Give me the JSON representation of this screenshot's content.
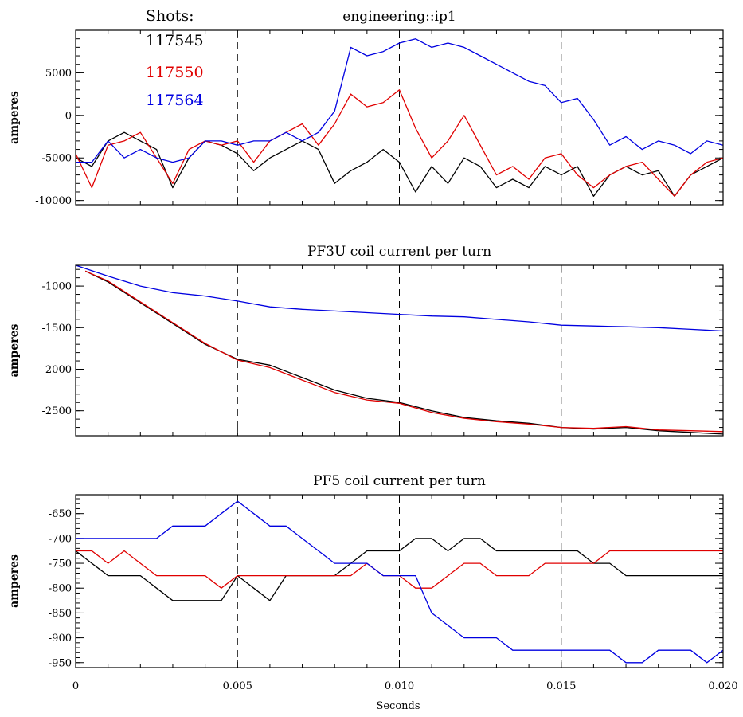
{
  "legend": {
    "title": "Shots:",
    "shots": [
      {
        "label": "117545",
        "color": "#000000"
      },
      {
        "label": "117550",
        "color": "#e00000"
      },
      {
        "label": "117564",
        "color": "#0000e0"
      }
    ]
  },
  "xaxis": {
    "label": "Seconds",
    "ticks": [
      "0",
      "0.005",
      "0.010",
      "0.015",
      "0.020"
    ]
  },
  "chart_data": [
    {
      "type": "line",
      "title": "engineering::ip1",
      "ylabel": "amperes",
      "xlim": [
        0,
        0.02
      ],
      "ylim": [
        -10500,
        10000
      ],
      "yticks": [
        5000,
        0,
        -5000,
        -10000
      ],
      "ytick_labels": [
        "5000",
        "0",
        "-5000",
        "-10000"
      ],
      "vlines": [
        0.005,
        0.01,
        0.015
      ],
      "series": [
        {
          "name": "117545",
          "color": "#000000",
          "x": [
            0,
            0.0005,
            0.001,
            0.0015,
            0.002,
            0.0025,
            0.003,
            0.0035,
            0.004,
            0.0045,
            0.005,
            0.0055,
            0.006,
            0.0065,
            0.007,
            0.0075,
            0.008,
            0.0085,
            0.009,
            0.0095,
            0.01,
            0.0105,
            0.011,
            0.0115,
            0.012,
            0.0125,
            0.013,
            0.0135,
            0.014,
            0.0145,
            0.015,
            0.0155,
            0.016,
            0.0165,
            0.017,
            0.0175,
            0.018,
            0.0185,
            0.019,
            0.0195,
            0.02
          ],
          "y": [
            -5000,
            -6000,
            -3000,
            -2000,
            -3000,
            -4000,
            -8500,
            -5000,
            -3000,
            -3500,
            -4500,
            -6500,
            -5000,
            -4000,
            -3000,
            -4000,
            -8000,
            -6500,
            -5500,
            -4000,
            -5500,
            -9000,
            -6000,
            -8000,
            -5000,
            -6000,
            -8500,
            -7500,
            -8500,
            -6000,
            -7000,
            -6000,
            -9500,
            -7000,
            -6000,
            -7000,
            -6500,
            -9500,
            -7000,
            -6000,
            -5000
          ]
        },
        {
          "name": "117550",
          "color": "#e00000",
          "x": [
            0,
            0.0005,
            0.001,
            0.0015,
            0.002,
            0.0025,
            0.003,
            0.0035,
            0.004,
            0.0045,
            0.005,
            0.0055,
            0.006,
            0.0065,
            0.007,
            0.0075,
            0.008,
            0.0085,
            0.009,
            0.0095,
            0.01,
            0.0105,
            0.011,
            0.0115,
            0.012,
            0.0125,
            0.013,
            0.0135,
            0.014,
            0.0145,
            0.015,
            0.0155,
            0.016,
            0.0165,
            0.017,
            0.0175,
            0.018,
            0.0185,
            0.019,
            0.0195,
            0.02
          ],
          "y": [
            -4500,
            -8500,
            -3500,
            -3000,
            -2000,
            -5000,
            -8000,
            -4000,
            -3000,
            -3500,
            -3000,
            -5500,
            -3000,
            -2000,
            -1000,
            -3500,
            -1000,
            2500,
            1000,
            1500,
            3000,
            -1500,
            -5000,
            -3000,
            0,
            -3500,
            -7000,
            -6000,
            -7500,
            -5000,
            -4500,
            -7000,
            -8500,
            -7000,
            -6000,
            -5500,
            -7500,
            -9500,
            -7000,
            -5500,
            -5000
          ]
        },
        {
          "name": "117564",
          "color": "#0000e0",
          "x": [
            0,
            0.0005,
            0.001,
            0.0015,
            0.002,
            0.0025,
            0.003,
            0.0035,
            0.004,
            0.0045,
            0.005,
            0.0055,
            0.006,
            0.0065,
            0.007,
            0.0075,
            0.008,
            0.0085,
            0.009,
            0.0095,
            0.01,
            0.0105,
            0.011,
            0.0115,
            0.012,
            0.0125,
            0.013,
            0.0135,
            0.014,
            0.0145,
            0.015,
            0.0155,
            0.016,
            0.0165,
            0.017,
            0.0175,
            0.018,
            0.0185,
            0.019,
            0.0195,
            0.02
          ],
          "y": [
            -5500,
            -5500,
            -3000,
            -5000,
            -4000,
            -5000,
            -5500,
            -5000,
            -3000,
            -3000,
            -3500,
            -3000,
            -3000,
            -2000,
            -3000,
            -2000,
            500,
            8000,
            7000,
            7500,
            8500,
            9000,
            8000,
            8500,
            8000,
            7000,
            6000,
            5000,
            4000,
            3500,
            1500,
            2000,
            -500,
            -3500,
            -2500,
            -4000,
            -3000,
            -3500,
            -4500,
            -3000,
            -3500
          ]
        }
      ]
    },
    {
      "type": "line",
      "title": "PF3U coil current per turn",
      "ylabel": "amperes",
      "xlim": [
        0,
        0.02
      ],
      "ylim": [
        -2800,
        -750
      ],
      "yticks": [
        -1000,
        -1500,
        -2000,
        -2500
      ],
      "ytick_labels": [
        "-1000",
        "-1500",
        "-2000",
        "-2500"
      ],
      "vlines": [
        0.005,
        0.01,
        0.015
      ],
      "series": [
        {
          "name": "117545",
          "color": "#000000",
          "x": [
            0.0003,
            0.001,
            0.002,
            0.003,
            0.004,
            0.005,
            0.006,
            0.007,
            0.008,
            0.009,
            0.01,
            0.011,
            0.012,
            0.013,
            0.014,
            0.015,
            0.016,
            0.017,
            0.018,
            0.019,
            0.02
          ],
          "y": [
            -820,
            -950,
            -1200,
            -1450,
            -1700,
            -1880,
            -1950,
            -2100,
            -2250,
            -2350,
            -2400,
            -2500,
            -2580,
            -2620,
            -2650,
            -2700,
            -2720,
            -2700,
            -2740,
            -2760,
            -2780
          ]
        },
        {
          "name": "117550",
          "color": "#e00000",
          "x": [
            0.0003,
            0.001,
            0.002,
            0.003,
            0.004,
            0.005,
            0.006,
            0.007,
            0.008,
            0.009,
            0.01,
            0.011,
            0.012,
            0.013,
            0.014,
            0.015,
            0.016,
            0.017,
            0.018,
            0.019,
            0.02
          ],
          "y": [
            -820,
            -940,
            -1190,
            -1440,
            -1690,
            -1890,
            -1980,
            -2130,
            -2280,
            -2370,
            -2410,
            -2520,
            -2590,
            -2630,
            -2660,
            -2700,
            -2710,
            -2690,
            -2730,
            -2740,
            -2750
          ]
        },
        {
          "name": "117564",
          "color": "#0000e0",
          "x": [
            0,
            0.001,
            0.002,
            0.003,
            0.004,
            0.005,
            0.006,
            0.007,
            0.008,
            0.009,
            0.01,
            0.011,
            0.012,
            0.013,
            0.014,
            0.015,
            0.016,
            0.017,
            0.018,
            0.019,
            0.02
          ],
          "y": [
            -750,
            -880,
            -1000,
            -1080,
            -1120,
            -1180,
            -1250,
            -1280,
            -1300,
            -1320,
            -1340,
            -1360,
            -1370,
            -1400,
            -1430,
            -1470,
            -1480,
            -1490,
            -1500,
            -1520,
            -1540
          ]
        }
      ]
    },
    {
      "type": "line",
      "title": "PF5 coil current per turn",
      "ylabel": "amperes",
      "xlim": [
        0,
        0.02
      ],
      "ylim": [
        -960,
        -612
      ],
      "yticks": [
        -650,
        -700,
        -750,
        -800,
        -850,
        -900,
        -950
      ],
      "ytick_labels": [
        "-650",
        "-700",
        "-750",
        "-800",
        "-850",
        "-900",
        "-950"
      ],
      "vlines": [
        0.005,
        0.01,
        0.015
      ],
      "series": [
        {
          "name": "117545",
          "color": "#000000",
          "x": [
            0,
            0.0005,
            0.001,
            0.0015,
            0.002,
            0.0025,
            0.003,
            0.0035,
            0.004,
            0.0045,
            0.005,
            0.0055,
            0.006,
            0.0065,
            0.007,
            0.0075,
            0.008,
            0.0085,
            0.009,
            0.0095,
            0.01,
            0.0105,
            0.011,
            0.0115,
            0.012,
            0.0125,
            0.013,
            0.0135,
            0.014,
            0.0145,
            0.015,
            0.0155,
            0.016,
            0.0165,
            0.017,
            0.0175,
            0.018,
            0.0185,
            0.019,
            0.0195,
            0.02
          ],
          "y": [
            -725,
            -750,
            -775,
            -775,
            -775,
            -800,
            -825,
            -825,
            -825,
            -825,
            -775,
            -800,
            -825,
            -775,
            -775,
            -775,
            -775,
            -750,
            -725,
            -725,
            -725,
            -700,
            -700,
            -725,
            -700,
            -700,
            -725,
            -725,
            -725,
            -725,
            -725,
            -725,
            -750,
            -750,
            -775,
            -775,
            -775,
            -775,
            -775,
            -775,
            -775
          ]
        },
        {
          "name": "117550",
          "color": "#e00000",
          "x": [
            0,
            0.0005,
            0.001,
            0.0015,
            0.002,
            0.0025,
            0.003,
            0.0035,
            0.004,
            0.0045,
            0.005,
            0.0055,
            0.006,
            0.0065,
            0.007,
            0.0075,
            0.008,
            0.0085,
            0.009,
            0.0095,
            0.01,
            0.0105,
            0.011,
            0.0115,
            0.012,
            0.0125,
            0.013,
            0.0135,
            0.014,
            0.0145,
            0.015,
            0.0155,
            0.016,
            0.0165,
            0.017,
            0.0175,
            0.018,
            0.0185,
            0.019,
            0.0195,
            0.02
          ],
          "y": [
            -725,
            -725,
            -750,
            -725,
            -750,
            -775,
            -775,
            -775,
            -775,
            -800,
            -775,
            -775,
            -775,
            -775,
            -775,
            -775,
            -775,
            -775,
            -750,
            -775,
            -775,
            -800,
            -800,
            -775,
            -750,
            -750,
            -775,
            -775,
            -775,
            -750,
            -750,
            -750,
            -750,
            -725,
            -725,
            -725,
            -725,
            -725,
            -725,
            -725,
            -725
          ]
        },
        {
          "name": "117564",
          "color": "#0000e0",
          "x": [
            0,
            0.0005,
            0.001,
            0.0015,
            0.002,
            0.0025,
            0.003,
            0.0035,
            0.004,
            0.0045,
            0.005,
            0.0055,
            0.006,
            0.0065,
            0.007,
            0.0075,
            0.008,
            0.0085,
            0.009,
            0.0095,
            0.01,
            0.0105,
            0.011,
            0.0115,
            0.012,
            0.0125,
            0.013,
            0.0135,
            0.014,
            0.0145,
            0.015,
            0.0155,
            0.016,
            0.0165,
            0.017,
            0.0175,
            0.018,
            0.0185,
            0.019,
            0.0195,
            0.02
          ],
          "y": [
            -700,
            -700,
            -700,
            -700,
            -700,
            -700,
            -675,
            -675,
            -675,
            -650,
            -625,
            -650,
            -675,
            -675,
            -700,
            -725,
            -750,
            -750,
            -750,
            -775,
            -775,
            -775,
            -850,
            -875,
            -900,
            -900,
            -900,
            -925,
            -925,
            -925,
            -925,
            -925,
            -925,
            -925,
            -950,
            -950,
            -925,
            -925,
            -925,
            -950,
            -925
          ]
        }
      ]
    }
  ]
}
